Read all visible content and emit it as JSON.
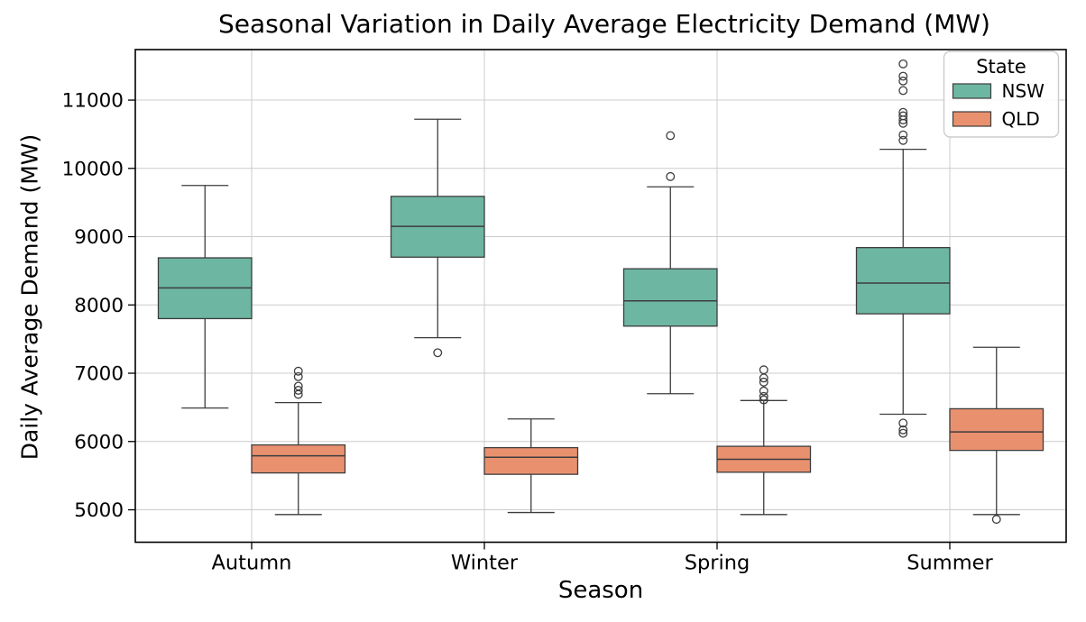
{
  "chart_data": {
    "type": "boxplot",
    "title": "Seasonal Variation in Daily Average Electricity Demand (MW)",
    "xlabel": "Season",
    "ylabel": "Daily Average Demand (MW)",
    "categories": [
      "Autumn",
      "Winter",
      "Spring",
      "Summer"
    ],
    "y_ticks": [
      5000,
      6000,
      7000,
      8000,
      9000,
      10000,
      11000
    ],
    "ylim": [
      4525,
      11740
    ],
    "grid": true,
    "legend": {
      "title": "State",
      "position": "upper right",
      "entries": [
        "NSW",
        "QLD"
      ]
    },
    "series": [
      {
        "name": "NSW",
        "color": "#6db6a2",
        "boxes": [
          {
            "category": "Autumn",
            "whislo": 6490,
            "q1": 7800,
            "med": 8250,
            "q3": 8690,
            "whishi": 9750,
            "fliers": []
          },
          {
            "category": "Winter",
            "whislo": 7520,
            "q1": 8700,
            "med": 9150,
            "q3": 9590,
            "whishi": 10720,
            "fliers": [
              7300
            ]
          },
          {
            "category": "Spring",
            "whislo": 6700,
            "q1": 7690,
            "med": 8060,
            "q3": 8530,
            "whishi": 9730,
            "fliers": [
              10480,
              9880
            ]
          },
          {
            "category": "Summer",
            "whislo": 6400,
            "q1": 7870,
            "med": 8320,
            "q3": 8840,
            "whishi": 10280,
            "fliers": [
              11530,
              11350,
              11280,
              11140,
              10820,
              10770,
              10710,
              10660,
              10490,
              10410,
              6270,
              6170,
              6120
            ]
          }
        ]
      },
      {
        "name": "QLD",
        "color": "#e9916f",
        "boxes": [
          {
            "category": "Autumn",
            "whislo": 4930,
            "q1": 5540,
            "med": 5790,
            "q3": 5950,
            "whishi": 6570,
            "fliers": [
              7030,
              6950,
              6810,
              6750,
              6690
            ]
          },
          {
            "category": "Winter",
            "whislo": 4960,
            "q1": 5520,
            "med": 5770,
            "q3": 5910,
            "whishi": 6330,
            "fliers": []
          },
          {
            "category": "Spring",
            "whislo": 4930,
            "q1": 5550,
            "med": 5740,
            "q3": 5930,
            "whishi": 6600,
            "fliers": [
              7050,
              6930,
              6870,
              6740,
              6660,
              6610
            ]
          },
          {
            "category": "Summer",
            "whislo": 4930,
            "q1": 5870,
            "med": 6140,
            "q3": 6480,
            "whishi": 7380,
            "fliers": [
              4860
            ]
          }
        ]
      }
    ],
    "style": {
      "box_stroke": "#3d3d3d",
      "grid_color": "#cccccc",
      "spine_color": "#000000",
      "background": "#ffffff",
      "legend_border": "#cccccc"
    }
  }
}
